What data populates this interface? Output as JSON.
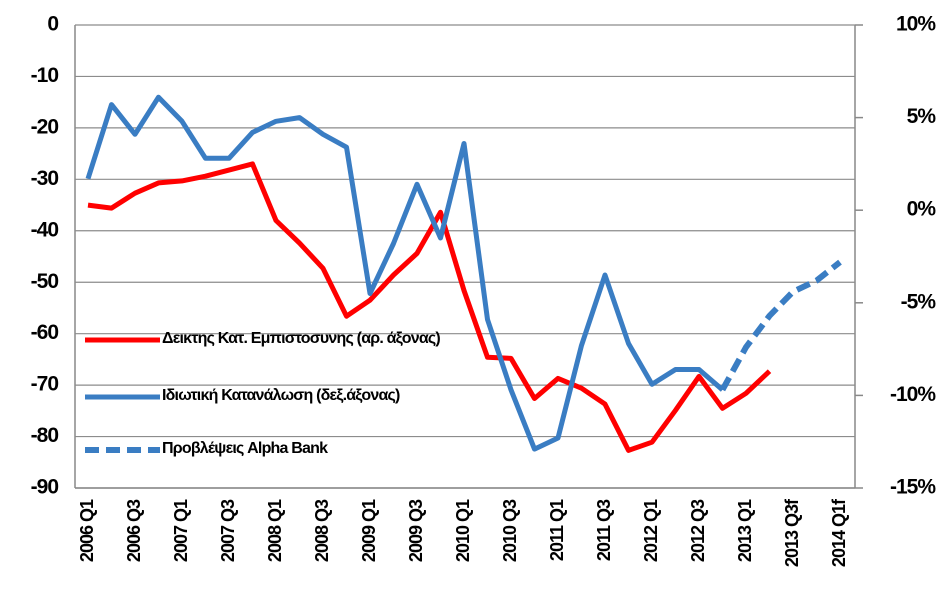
{
  "chart_data": {
    "type": "line",
    "categories": [
      "2006 Q1",
      null,
      "2006 Q3",
      null,
      "2007 Q1",
      null,
      "2007 Q3",
      null,
      "2008 Q1",
      null,
      "2008 Q3",
      null,
      "2009 Q1",
      null,
      "2009 Q3",
      null,
      "2010 Q1",
      null,
      "2010 Q3",
      null,
      "2011 Q1",
      null,
      "2011 Q3",
      null,
      "2012 Q1",
      null,
      "2012 Q3",
      null,
      "2013 Q1",
      null,
      "2013 Q3f",
      null,
      "2014 Q1f"
    ],
    "series": [
      {
        "name": "Δεικτης Κατ. Εμπιστοσυνης  (αρ. άξονας)",
        "color": "#ff0000",
        "axis": "y",
        "values": [
          -35,
          -35.6,
          -32.7,
          -30.7,
          -30.3,
          -29.4,
          -28.2,
          -27,
          -38,
          -42.4,
          -47.3,
          -56.6,
          -53.5,
          -48.6,
          -44.4,
          -36.4,
          -51.6,
          -64.6,
          -64.8,
          -72.6,
          -68.7,
          -70.6,
          -73.7,
          -82.7,
          -81.1,
          -74.9,
          -68.3,
          -74.5,
          -71.6,
          -67.3,
          null,
          null,
          null
        ]
      },
      {
        "name": "Ιδιωτική Κατανάλωση (δεξ.άξονας)",
        "color": "#3a7dc3",
        "axis": "y2",
        "values": [
          1.7,
          5.7,
          4.1,
          6.1,
          4.8,
          2.8,
          2.8,
          4.2,
          4.8,
          5.0,
          4.1,
          3.4,
          -4.5,
          -1.8,
          1.4,
          -1.5,
          3.6,
          -5.9,
          -9.7,
          -12.9,
          -12.3,
          -7.3,
          -3.5,
          -7.2,
          -9.4,
          -8.6,
          -8.6,
          -9.7,
          null,
          null,
          null,
          null,
          null
        ]
      },
      {
        "name": "Προβλέψεις Alpha Bank",
        "color": "#3a7dc3",
        "axis": "y2",
        "dashed": true,
        "values": [
          null,
          null,
          null,
          null,
          null,
          null,
          null,
          null,
          null,
          null,
          null,
          null,
          null,
          null,
          null,
          null,
          null,
          null,
          null,
          null,
          null,
          null,
          null,
          null,
          null,
          null,
          null,
          -9.7,
          -7.4,
          -5.7,
          -4.4,
          -3.8,
          -2.8
        ]
      }
    ],
    "ylim": [
      -90,
      0
    ],
    "yticks": [
      0,
      -10,
      -20,
      -30,
      -40,
      -50,
      -60,
      -70,
      -80,
      -90
    ],
    "y2lim": [
      -15,
      10
    ],
    "y2ticks": [
      {
        "value": 10,
        "label": "10%"
      },
      {
        "value": 5,
        "label": "5%"
      },
      {
        "value": 0,
        "label": "0%"
      },
      {
        "value": -5,
        "label": "-5%"
      },
      {
        "value": -10,
        "label": "-10%"
      },
      {
        "value": -15,
        "label": "-15%"
      }
    ],
    "grid": true
  }
}
